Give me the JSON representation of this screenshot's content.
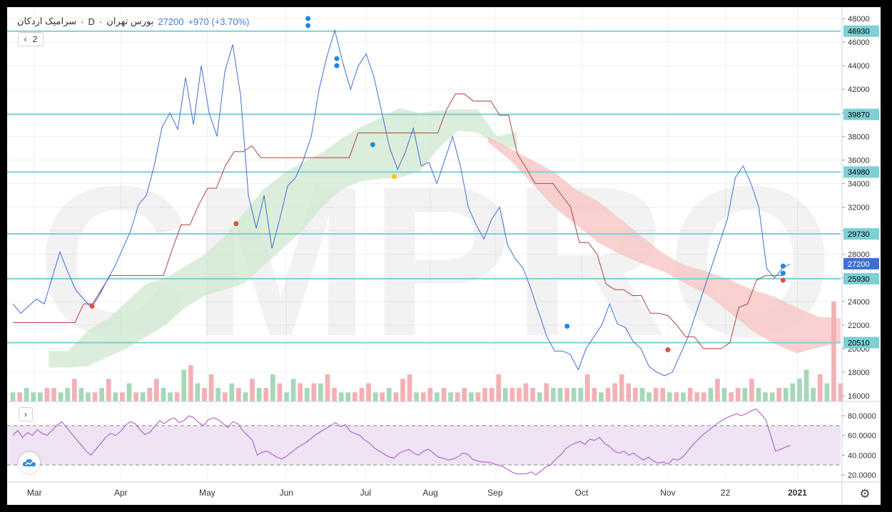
{
  "legend": {
    "symbol": "سرامیک اردکان",
    "sep1": "·",
    "interval": "D",
    "sep2": "·",
    "exchange": "بورس تهران",
    "price": "27200",
    "change": "+970 (+3.70%)"
  },
  "buttons": {
    "collapse_label": "‹",
    "indicator_count": "2",
    "rsi_expand_label": "›",
    "settings_icon": "gear-icon",
    "logo_icon": "cloud-logo-icon"
  },
  "watermark": "CMPRO",
  "colors": {
    "price_line": "#3f6fd1",
    "base_line": "#b0413e",
    "hline": "#7ecfd6",
    "cloud_bull": "#cfe8cf",
    "cloud_bear": "#f8c6c6",
    "vol_up": "#a5d8b8",
    "vol_down": "#f3b1b5",
    "rsi_line": "#a84fc4",
    "rsi_band": "#efe3f4",
    "dot_blue": "#1e88e5",
    "dot_red": "#e0504a",
    "dot_yellow": "#f5c518",
    "price_tag": "#3f6fd1"
  },
  "chart_data": [
    {
      "type": "line",
      "name": "price",
      "y_ticks": [
        "48000",
        "46000",
        "44000",
        "42000",
        "40000",
        "38000",
        "36000",
        "34000",
        "32000",
        "30000",
        "28000",
        "26000",
        "24000",
        "22000",
        "20000",
        "18000",
        "16000"
      ],
      "ylim": [
        16000,
        48000
      ],
      "x_labels": [
        "Mar",
        "Apr",
        "May",
        "Jun",
        "Jul",
        "Aug",
        "Sep",
        "Oct",
        "Nov",
        "22",
        "2021"
      ],
      "x_label_pos": [
        3,
        15,
        27,
        38,
        49,
        58,
        67,
        79,
        91,
        99,
        109
      ],
      "x_count": 116,
      "levels": [
        "46930",
        "39870",
        "34980",
        "29730",
        "25930",
        "20510"
      ],
      "last_price_label": "27200",
      "last_price": 27200,
      "price": [
        23800,
        23000,
        23600,
        24200,
        23800,
        26000,
        28200,
        26500,
        25000,
        24200,
        23500,
        24500,
        25800,
        27000,
        28500,
        30000,
        32200,
        33000,
        35500,
        38800,
        40000,
        38600,
        43000,
        39000,
        44000,
        40000,
        38000,
        43500,
        45800,
        41500,
        33000,
        30200,
        33000,
        28500,
        31000,
        33800,
        34500,
        36000,
        38000,
        42000,
        44800,
        47000,
        44300,
        42000,
        44000,
        45000,
        43000,
        40000,
        37000,
        35200,
        36700,
        38700,
        35500,
        35800,
        34000,
        36000,
        38000,
        35500,
        32000,
        30500,
        29300,
        31000,
        32000,
        28800,
        27600,
        26800,
        25000,
        23000,
        21000,
        19800,
        19800,
        19500,
        18200,
        20000,
        21000,
        22000,
        23800,
        22100,
        21800,
        20600,
        20000,
        18500,
        18000,
        17700,
        18000,
        19500,
        21000,
        23000,
        25000,
        27000,
        29000,
        31000,
        34500,
        35500,
        34000,
        32000,
        26800,
        26000,
        26800,
        27200
      ],
      "price_x_start": 0,
      "base": [
        22200,
        22200,
        22200,
        22200,
        22200,
        22200,
        22200,
        22200,
        23800,
        23800,
        25000,
        26200,
        26200,
        26200,
        26200,
        26200,
        26200,
        26200,
        28400,
        30500,
        30500,
        32200,
        33600,
        33600,
        35500,
        36700,
        36700,
        37200,
        36200,
        36200,
        36200,
        36200,
        36200,
        36200,
        36200,
        36200,
        36200,
        36200,
        36200,
        38300,
        38300,
        38300,
        38300,
        38300,
        38300,
        38300,
        38300,
        38300,
        38300,
        40300,
        41600,
        41600,
        41000,
        41000,
        41000,
        39800,
        39800,
        36500,
        35300,
        34000,
        34000,
        34000,
        33000,
        32000,
        29000,
        29000,
        28000,
        25500,
        25000,
        25000,
        24500,
        24500,
        23000,
        23000,
        22800,
        22000,
        21000,
        21000,
        20000,
        20000,
        20000,
        20500,
        23500,
        23800,
        25800,
        26200,
        26200,
        26200
      ],
      "base_x_start": 0,
      "cloud_green_top": [
        19800,
        19800,
        21500,
        22500,
        24000,
        25500,
        26000,
        27000,
        28000,
        29500,
        31500,
        33500,
        34800,
        35800,
        36600,
        37800,
        38800,
        39600,
        40400,
        40000,
        40200,
        40300,
        40300,
        38000,
        38400
      ],
      "cloud_green_bot": [
        18400,
        18400,
        18500,
        19300,
        20000,
        21000,
        22000,
        23500,
        24500,
        25000,
        25500,
        27000,
        28500,
        30000,
        32000,
        33500,
        34200,
        34400,
        34500,
        35000,
        37000,
        38500,
        38300,
        37200,
        37000
      ],
      "cloud_green_x_start": 5,
      "cloud_red_top": [
        38000,
        37000,
        36000,
        35000,
        33500,
        32500,
        31000,
        29500,
        28000,
        27000,
        26500,
        25800,
        25000,
        24400,
        23500,
        22700,
        22600
      ],
      "cloud_red_bot": [
        37500,
        36000,
        34000,
        32000,
        30500,
        29000,
        28000,
        27200,
        26500,
        25500,
        24500,
        23000,
        21500,
        20400,
        19600,
        20100,
        20500
      ],
      "cloud_red_x_start": 66,
      "dots": [
        {
          "x": 11,
          "y": 23600,
          "c": "red"
        },
        {
          "x": 31,
          "y": 30600,
          "c": "red"
        },
        {
          "x": 41,
          "y": 48000,
          "c": "blue"
        },
        {
          "x": 41,
          "y": 47400,
          "c": "blue"
        },
        {
          "x": 45,
          "y": 44600,
          "c": "blue"
        },
        {
          "x": 45,
          "y": 44000,
          "c": "blue"
        },
        {
          "x": 50,
          "y": 37300,
          "c": "blue"
        },
        {
          "x": 53,
          "y": 34600,
          "c": "yellow"
        },
        {
          "x": 77,
          "y": 21900,
          "c": "blue"
        },
        {
          "x": 91,
          "y": 19900,
          "c": "red"
        },
        {
          "x": 107,
          "y": 27000,
          "c": "blue"
        },
        {
          "x": 107,
          "y": 26400,
          "c": "blue"
        },
        {
          "x": 107,
          "y": 25800,
          "c": "red"
        }
      ]
    },
    {
      "type": "bar",
      "name": "volume",
      "values": [
        2,
        2,
        3,
        2,
        2,
        3,
        3,
        2,
        3,
        5,
        3,
        2,
        2,
        3,
        5,
        2,
        2,
        4,
        2,
        2,
        3,
        5,
        3,
        2,
        2,
        7,
        8,
        4,
        3,
        6,
        3,
        2,
        4,
        3,
        2,
        5,
        3,
        3,
        6,
        4,
        2,
        5,
        4,
        3,
        4,
        4,
        6,
        3,
        2,
        2,
        2,
        3,
        4,
        2,
        2,
        3,
        2,
        5,
        6,
        2,
        2,
        3,
        2,
        3,
        2,
        2,
        3,
        2,
        2,
        3,
        3,
        6,
        3,
        3,
        3,
        4,
        3,
        2,
        4,
        3,
        3,
        3,
        3,
        3,
        6,
        3,
        2,
        3,
        4,
        6,
        4,
        3,
        3,
        2,
        3,
        3,
        2,
        2,
        2,
        3,
        2,
        2,
        3,
        5,
        3,
        2,
        3,
        3,
        5,
        3,
        2,
        2,
        3,
        3,
        4,
        5,
        7,
        3,
        6,
        4,
        22,
        4
      ],
      "up": [
        1,
        0,
        1,
        1,
        1,
        0,
        0,
        1,
        1,
        0,
        1,
        1,
        0,
        1,
        0,
        1,
        0,
        1,
        0,
        1,
        0,
        0,
        1,
        1,
        0,
        1,
        0,
        1,
        0,
        0,
        1,
        0,
        1,
        0,
        1,
        0,
        1,
        0,
        1,
        0,
        1,
        1,
        0,
        1,
        0,
        1,
        0,
        0,
        1,
        1,
        0,
        0,
        0,
        1,
        0,
        1,
        0,
        0,
        0,
        1,
        0,
        0,
        1,
        0,
        1,
        0,
        0,
        1,
        0,
        0,
        0,
        0,
        1,
        0,
        0,
        0,
        0,
        1,
        0,
        1,
        1,
        0,
        1,
        1,
        0,
        0,
        1,
        0,
        0,
        0,
        0,
        0,
        1,
        1,
        0,
        0,
        1,
        0,
        1,
        0,
        0,
        0,
        1,
        0,
        1,
        0,
        0,
        1,
        0,
        1,
        1,
        1,
        0,
        1,
        1,
        1,
        1,
        1,
        0,
        1,
        0,
        0
      ]
    },
    {
      "type": "line",
      "name": "RSI",
      "y_ticks": [
        "80.0000",
        "60.0000",
        "40.0000",
        "20.0000"
      ],
      "ylim": [
        17,
        88
      ],
      "band": [
        30,
        70
      ],
      "x_count": 116,
      "values": [
        60,
        65,
        58,
        63,
        60,
        66,
        62,
        60,
        65,
        70,
        74,
        68,
        62,
        56,
        50,
        44,
        40,
        46,
        52,
        58,
        62,
        60,
        64,
        70,
        74,
        72,
        66,
        61,
        63,
        69,
        75,
        72,
        76,
        78,
        73,
        75,
        80,
        78,
        73,
        70,
        76,
        78,
        76,
        72,
        68,
        74,
        72,
        65,
        60,
        55,
        40,
        43,
        44,
        41,
        38,
        36,
        39,
        43,
        47,
        50,
        53,
        57,
        61,
        64,
        67,
        70,
        73,
        69,
        71,
        64,
        62,
        60,
        55,
        52,
        47,
        44,
        41,
        38,
        37,
        42,
        44,
        46,
        42,
        40,
        44,
        46,
        42,
        38,
        37,
        35,
        36,
        38,
        42,
        41,
        36,
        34,
        33,
        33,
        32,
        30,
        29,
        26,
        23,
        21,
        21,
        21,
        23,
        20,
        24,
        28,
        30,
        36,
        40,
        46,
        50,
        52,
        54,
        51,
        56,
        55,
        58,
        52,
        49,
        44,
        42,
        44,
        40,
        42,
        38,
        35,
        38,
        34,
        32,
        33,
        31,
        36,
        35,
        38,
        44,
        50,
        55,
        60,
        64,
        68,
        72,
        75,
        78,
        80,
        82,
        80,
        82,
        85,
        87,
        82,
        76,
        60,
        44,
        46,
        48,
        50
      ]
    }
  ]
}
